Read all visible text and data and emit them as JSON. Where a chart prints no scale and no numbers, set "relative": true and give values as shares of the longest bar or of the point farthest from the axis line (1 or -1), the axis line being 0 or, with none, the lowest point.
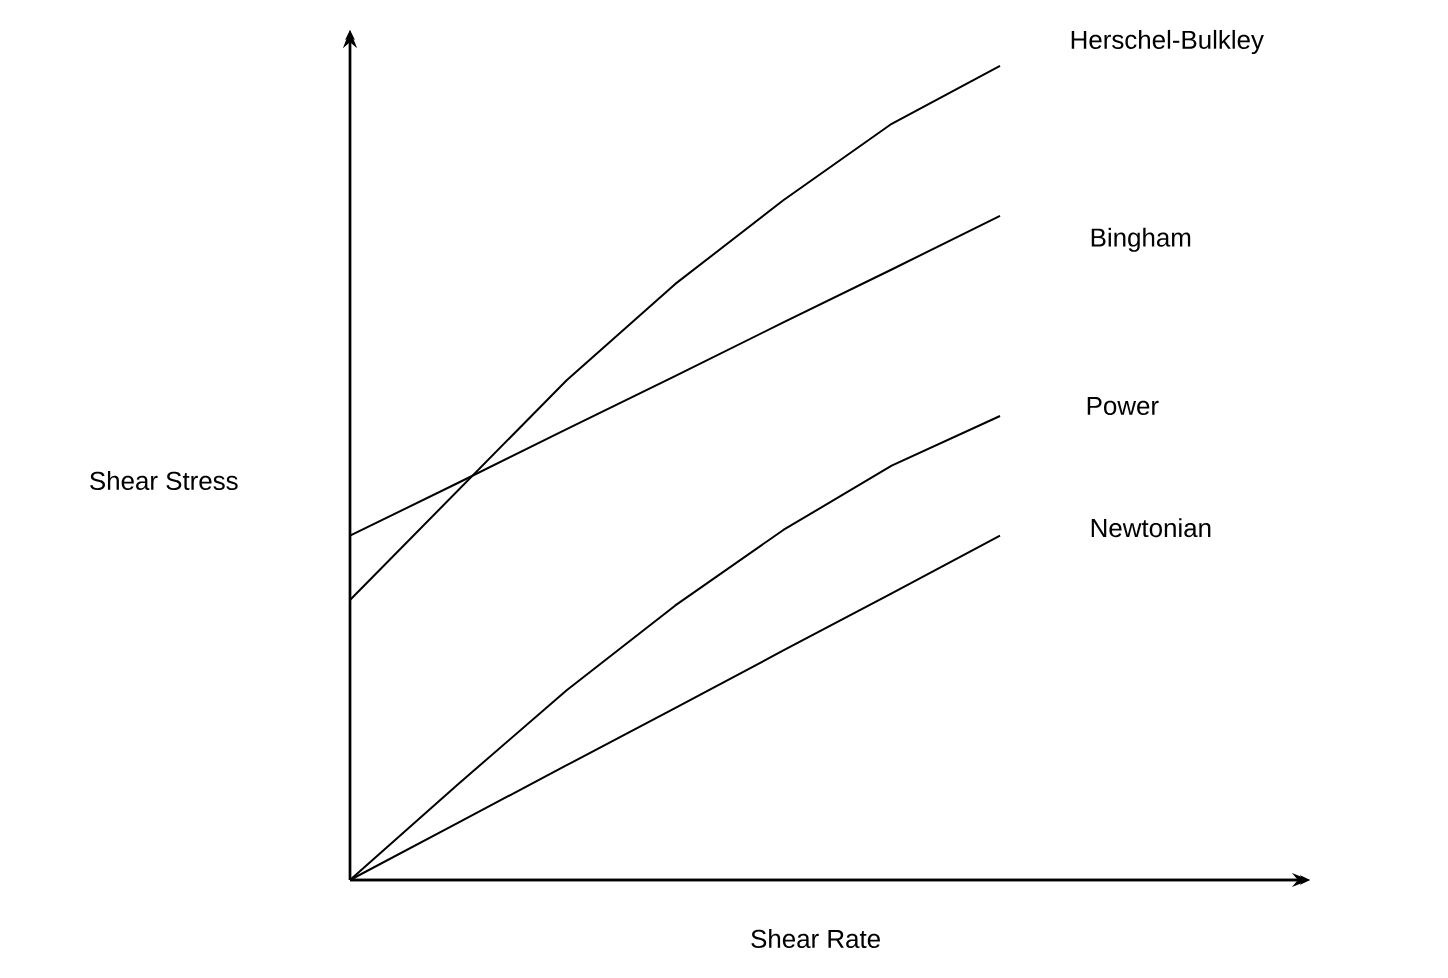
{
  "chart_data": {
    "type": "line",
    "relative": true,
    "xlabel": "Shear Rate",
    "ylabel": "Shear Stress",
    "categories": [
      null,
      null,
      null,
      null,
      null,
      null,
      null
    ],
    "series": [
      {
        "name": "Herschel-Bulkley",
        "color": "#000000",
        "values": [
          0.344,
          0.479,
          0.614,
          0.732,
          0.835,
          0.929,
          1
        ]
      },
      {
        "name": "Bingham",
        "color": "#000000",
        "values": [
          0.423,
          0.488,
          0.554,
          0.619,
          0.685,
          0.75,
          0.816
        ]
      },
      {
        "name": "Power",
        "color": "#000000",
        "values": [
          0,
          0.118,
          0.233,
          0.337,
          0.43,
          0.509,
          0.57
        ]
      },
      {
        "name": "Newtonian",
        "color": "#000000",
        "values": [
          0,
          0.0705,
          0.141,
          0.211,
          0.282,
          0.352,
          0.423
        ]
      }
    ]
  }
}
